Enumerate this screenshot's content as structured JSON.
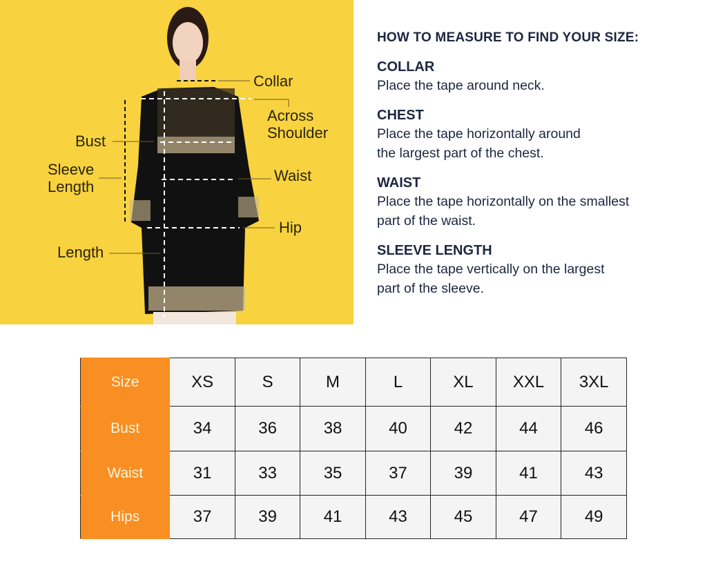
{
  "figure": {
    "labels": {
      "collar": "Collar",
      "across_shoulder_1": "Across",
      "across_shoulder_2": "Shoulder",
      "bust": "Bust",
      "sleeve_length_1": "Sleeve",
      "sleeve_length_2": "Length",
      "waist": "Waist",
      "hip": "Hip",
      "length": "Length"
    },
    "colors": {
      "background": "#f8d23f",
      "garment": "#111111",
      "print": "#c9b78f"
    }
  },
  "guide": {
    "title": "HOW TO MEASURE TO FIND YOUR SIZE:",
    "sections": [
      {
        "heading": "COLLAR",
        "lines": [
          "Place the tape around neck."
        ]
      },
      {
        "heading": "CHEST",
        "lines": [
          "Place the tape horizontally around",
          "the largest part of the chest."
        ]
      },
      {
        "heading": "WAIST",
        "lines": [
          "Place the tape horizontally on the smallest",
          "part of the waist."
        ]
      },
      {
        "heading": "SLEEVE LENGTH",
        "lines": [
          "Place the tape vertically on the largest",
          "part of the sleeve."
        ]
      }
    ]
  },
  "size_table": {
    "header_color": "#f98e22",
    "rows": [
      {
        "label": "Size",
        "values": [
          "XS",
          "S",
          "M",
          "L",
          "XL",
          "XXL",
          "3XL"
        ]
      },
      {
        "label": "Bust",
        "values": [
          "34",
          "36",
          "38",
          "40",
          "42",
          "44",
          "46"
        ]
      },
      {
        "label": "Waist",
        "values": [
          "31",
          "33",
          "35",
          "37",
          "39",
          "41",
          "43"
        ]
      },
      {
        "label": "Hips",
        "values": [
          "37",
          "39",
          "41",
          "43",
          "45",
          "47",
          "49"
        ]
      }
    ]
  }
}
